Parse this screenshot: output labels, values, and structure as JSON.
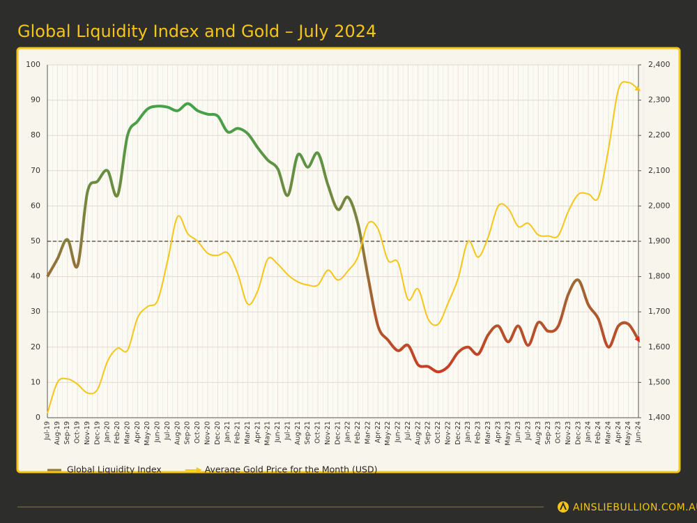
{
  "chart_data": {
    "type": "line",
    "title": "Global Liquidity Index and Gold – July 2024",
    "categories": [
      "Jul-19",
      "Aug-19",
      "Sep-19",
      "Oct-19",
      "Nov-19",
      "Dec-19",
      "Jan-20",
      "Feb-20",
      "Mar-20",
      "Apr-20",
      "May-20",
      "Jun-20",
      "Jul-20",
      "Aug-20",
      "Sep-20",
      "Oct-20",
      "Nov-20",
      "Dec-20",
      "Jan-21",
      "Feb-21",
      "Mar-21",
      "Apr-21",
      "May-21",
      "Jun-21",
      "Jul-21",
      "Aug-21",
      "Sep-21",
      "Oct-21",
      "Nov-21",
      "Dec-21",
      "Jan-22",
      "Feb-22",
      "Mar-22",
      "Apr-22",
      "May-22",
      "Jun-22",
      "Jul-22",
      "Aug-22",
      "Sep-22",
      "Oct-22",
      "Nov-22",
      "Dec-22",
      "Jan-23",
      "Feb-23",
      "Mar-23",
      "Apr-23",
      "May-23",
      "Jun-23",
      "Jul-23",
      "Aug-23",
      "Sep-23",
      "Oct-23",
      "Nov-23",
      "Dec-23",
      "Jan-24",
      "Feb-24",
      "Mar-24",
      "Apr-24",
      "May-24",
      "Jun-24"
    ],
    "series": [
      {
        "name": "Global Liquidity Index",
        "color": "#8b7a3c",
        "gradient": [
          "#2fae4e",
          "#8b7a3c",
          "#e2261b"
        ],
        "values": [
          40,
          45,
          50.5,
          43,
          64,
          67,
          70,
          63,
          80,
          84,
          87.5,
          88.3,
          88,
          87,
          89,
          87,
          86,
          85.5,
          81,
          82,
          80.5,
          76.5,
          73,
          70.5,
          63,
          74.5,
          71,
          75,
          66,
          59,
          62.5,
          55,
          40,
          26,
          22,
          19,
          20.5,
          15,
          14.5,
          13,
          14.5,
          18.5,
          20,
          18,
          23.5,
          26,
          21.5,
          26,
          20.5,
          27,
          24.5,
          26,
          35,
          39,
          32,
          28,
          20,
          26,
          26.5,
          22
        ]
      },
      {
        "name": "Average Gold Price for the Month (USD)",
        "color": "#f5c518",
        "axis": "y2",
        "values": [
          1412,
          1500,
          1510,
          1495,
          1470,
          1480,
          1560,
          1597,
          1591,
          1683,
          1715,
          1732,
          1845,
          1970,
          1922,
          1900,
          1866,
          1860,
          1867,
          1808,
          1722,
          1760,
          1850,
          1835,
          1805,
          1785,
          1776,
          1776,
          1818,
          1790,
          1816,
          1856,
          1950,
          1935,
          1846,
          1840,
          1735,
          1765,
          1680,
          1665,
          1725,
          1795,
          1900,
          1855,
          1912,
          2000,
          1993,
          1942,
          1951,
          1918,
          1915,
          1916,
          1985,
          2033,
          2034,
          2024,
          2160,
          2330,
          2350,
          2330
        ]
      }
    ],
    "ylim": [
      0,
      100
    ],
    "yticks": [
      0,
      10,
      20,
      30,
      40,
      50,
      60,
      70,
      80,
      90,
      100
    ],
    "y2lim": [
      1400,
      2400
    ],
    "y2ticks": [
      {
        "value": 1400,
        "label": "1,400"
      },
      {
        "value": 1500,
        "label": "1,500"
      },
      {
        "value": 1600,
        "label": "1,600"
      },
      {
        "value": 1700,
        "label": "1,700"
      },
      {
        "value": 1800,
        "label": "1,800"
      },
      {
        "value": 1900,
        "label": "1,900"
      },
      {
        "value": 2000,
        "label": "2,000"
      },
      {
        "value": 2100,
        "label": "2,100"
      },
      {
        "value": 2200,
        "label": "2,200"
      },
      {
        "value": 2300,
        "label": "2,300"
      },
      {
        "value": 2400,
        "label": "2,400"
      }
    ],
    "reference_line": 50,
    "grid": true
  },
  "footer": {
    "brand": "AINSLIEBULLION.COM.AU"
  }
}
